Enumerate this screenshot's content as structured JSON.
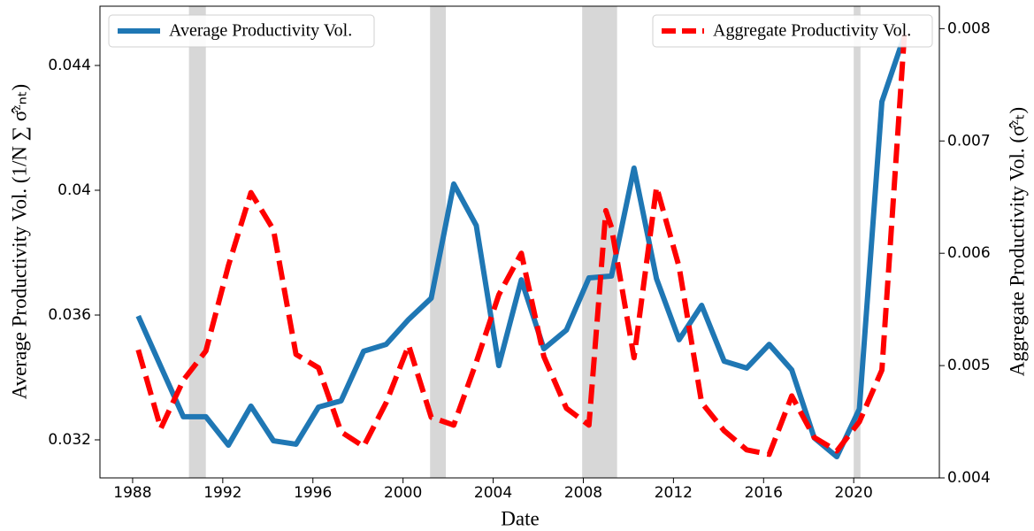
{
  "chart_data": {
    "type": "line",
    "xlabel": "Date",
    "ylabel": "Average Productivity Vol. (1/N ∑ σ̂ᶻₙₜ)",
    "y2label": "Aggregate Productivity Vol. (σ̂ᶻₜ)",
    "xlim": [
      1986.55,
      2023.8
    ],
    "xticks": [
      1988,
      1992,
      1996,
      2000,
      2004,
      2008,
      2012,
      2016,
      2020
    ],
    "ylim": [
      0.03078,
      0.0459
    ],
    "yticks": [
      0.032,
      0.036,
      0.04,
      0.044
    ],
    "y2lim": [
      0.004,
      0.0082
    ],
    "y2ticks": [
      0.004,
      0.005,
      0.006,
      0.007,
      0.008
    ],
    "shading": [
      [
        1990.5,
        1991.25
      ],
      [
        2001.2,
        2001.9
      ],
      [
        2007.95,
        2009.5
      ],
      [
        2020.0,
        2020.3
      ]
    ],
    "shading_color": "#d3d3d3",
    "series": [
      {
        "name": "Average Productivity Vol.",
        "color": "#1f77b4",
        "dash": "solid",
        "legend_loc": "upper left",
        "x": [
          1988.25,
          1989.25,
          1990.25,
          1991.25,
          1992.25,
          1993.25,
          1994.25,
          1995.25,
          1996.25,
          1997.25,
          1998.25,
          1999.25,
          2000.25,
          2001.25,
          2002.25,
          2003.25,
          2004.25,
          2005.25,
          2006.25,
          2007.25,
          2008.25,
          2009.25,
          2010.25,
          2011.25,
          2012.25,
          2013.25,
          2014.25,
          2015.25,
          2016.25,
          2017.25,
          2018.25,
          2019.25,
          2020.25,
          2021.25,
          2022.25
        ],
        "values": [
          0.03597,
          0.03435,
          0.03274,
          0.03274,
          0.03183,
          0.03308,
          0.03197,
          0.03186,
          0.03305,
          0.03325,
          0.03484,
          0.03506,
          0.03586,
          0.03654,
          0.0402,
          0.03887,
          0.03438,
          0.03713,
          0.03492,
          0.03552,
          0.03719,
          0.03725,
          0.04071,
          0.03716,
          0.03521,
          0.03631,
          0.03452,
          0.0343,
          0.03506,
          0.03424,
          0.03206,
          0.03146,
          0.03299,
          0.04284,
          0.04496
        ]
      },
      {
        "name": "Aggregate Productivity Vol.",
        "color": "#ff0000",
        "dash": "dashed",
        "legend_loc": "upper right",
        "axis": "y2",
        "x": [
          1988.25,
          1989.25,
          1990.25,
          1991.25,
          1992.25,
          1993.25,
          1994.25,
          1995.25,
          1996.25,
          1997.25,
          1998.25,
          1999.25,
          2000.25,
          2001.25,
          2002.25,
          2003.25,
          2004.25,
          2005.25,
          2006.25,
          2007.25,
          2008.25,
          2009.0,
          2009.25,
          2010.25,
          2011.25,
          2012.25,
          2013.25,
          2014.25,
          2015.25,
          2016.25,
          2017.25,
          2018.25,
          2019.25,
          2020.25,
          2021.25,
          2022.25
        ],
        "values": [
          0.00514,
          0.00444,
          0.00487,
          0.00513,
          0.00589,
          0.00654,
          0.00621,
          0.0051,
          0.00498,
          0.00441,
          0.00428,
          0.00467,
          0.00518,
          0.00454,
          0.00447,
          0.00503,
          0.00563,
          0.006,
          0.00508,
          0.00462,
          0.00447,
          0.00638,
          0.00623,
          0.00507,
          0.00659,
          0.00588,
          0.00467,
          0.00442,
          0.00425,
          0.00421,
          0.00473,
          0.00436,
          0.00424,
          0.0045,
          0.00496,
          0.00795
        ]
      }
    ]
  }
}
